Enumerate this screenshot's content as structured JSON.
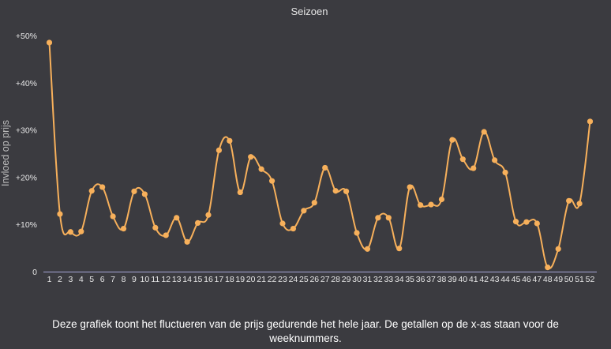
{
  "caption": "Deze grafiek toont het fluctueren van de prijs gedurende het hele jaar. De getallen op de x-as staan voor de weeknummers.",
  "colors": {
    "background": "#3b3b40",
    "line": "#f7b05b",
    "axis": "#a6a6d6",
    "text": "#e6e6e6"
  },
  "chart_data": {
    "type": "line",
    "title": "Seizoen",
    "xlabel": "",
    "ylabel": "Invloed op prijs",
    "ylim": [
      0,
      50
    ],
    "grid": false,
    "y_ticks": [
      {
        "value": 0,
        "label": "0"
      },
      {
        "value": 10,
        "label": "+10%"
      },
      {
        "value": 20,
        "label": "+20%"
      },
      {
        "value": 30,
        "label": "+30%"
      },
      {
        "value": 40,
        "label": "+40%"
      },
      {
        "value": 50,
        "label": "+50%"
      }
    ],
    "x": [
      1,
      2,
      3,
      4,
      5,
      6,
      7,
      8,
      9,
      10,
      11,
      12,
      13,
      14,
      15,
      16,
      17,
      18,
      19,
      20,
      21,
      22,
      23,
      24,
      25,
      26,
      27,
      28,
      29,
      30,
      31,
      32,
      33,
      34,
      35,
      36,
      37,
      38,
      39,
      40,
      41,
      42,
      43,
      44,
      45,
      46,
      47,
      48,
      49,
      50,
      51,
      52
    ],
    "series": [
      {
        "values": [
          48.5,
          12.2,
          8.4,
          8.5,
          17.1,
          17.9,
          11.7,
          9.1,
          17.0,
          16.4,
          9.3,
          7.7,
          11.4,
          6.3,
          10.3,
          12.0,
          25.7,
          27.7,
          16.8,
          24.3,
          21.7,
          19.2,
          10.2,
          9.1,
          12.9,
          14.6,
          22.0,
          17.1,
          17.0,
          8.2,
          4.8,
          11.4,
          11.4,
          4.9,
          17.9,
          14.1,
          14.2,
          15.3,
          27.9,
          23.8,
          21.9,
          29.6,
          23.6,
          21.0,
          10.6,
          10.5,
          10.2,
          0.9,
          4.8,
          15.0,
          14.4,
          31.8
        ]
      }
    ]
  }
}
